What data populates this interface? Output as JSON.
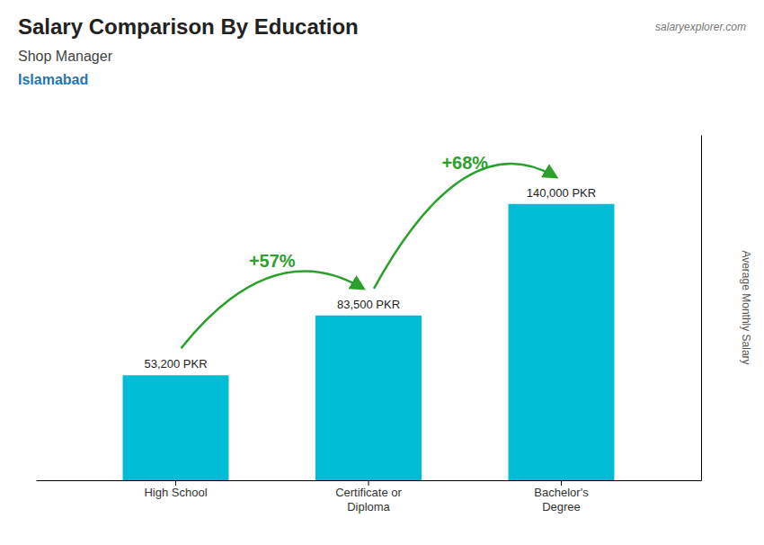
{
  "chart_data": {
    "type": "bar",
    "title": "Salary Comparison By Education",
    "subtitle": "Shop Manager",
    "location": "Islamabad",
    "watermark": "salaryexplorer.com",
    "ylabel": "Average Monthly Salary",
    "categories": [
      "High School",
      "Certificate or\nDiploma",
      "Bachelor's\nDegree"
    ],
    "values": [
      53200,
      83500,
      140000
    ],
    "value_labels": [
      "53,200 PKR",
      "83,500 PKR",
      "140,000 PKR"
    ],
    "data_labels": true,
    "annotations": [
      "+57%",
      "+68%"
    ],
    "color": "#00bcd4",
    "ylim": [
      0,
      175000
    ],
    "tick_labels": "x"
  }
}
